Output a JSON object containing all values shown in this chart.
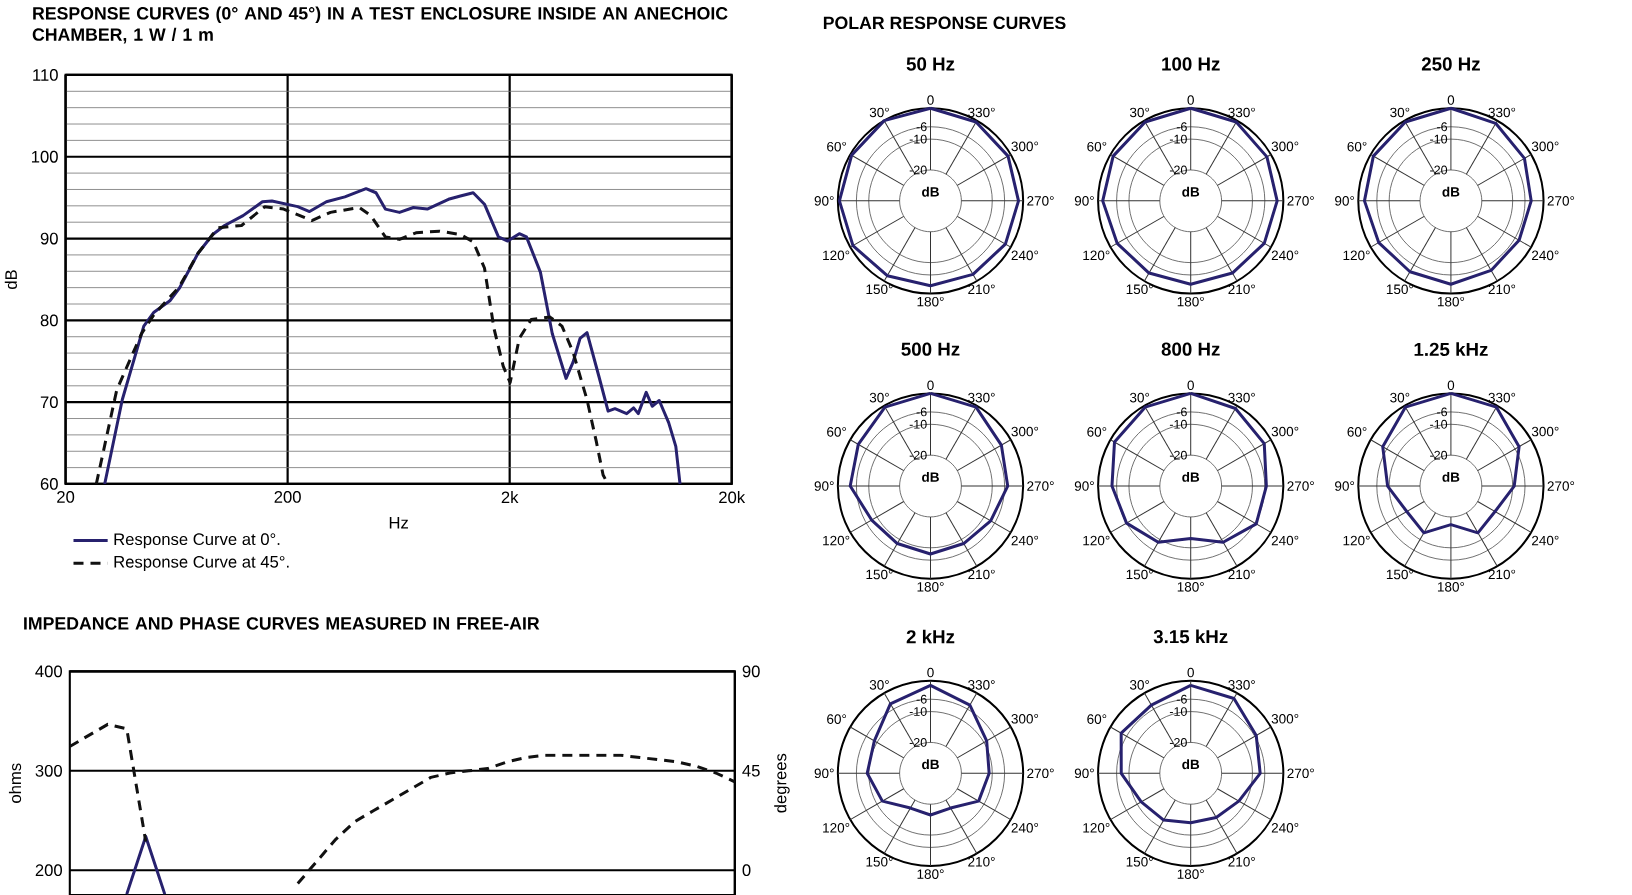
{
  "chart_data": [
    {
      "type": "line",
      "title": "RESPONSE CURVES (0° AND 45°) IN A TEST ENCLOSURE INSIDE AN ANECHOIC CHAMBER, 1 W / 1 m",
      "xlabel": "Hz",
      "ylabel": "dB",
      "log": "x",
      "xlim": [
        20,
        20000
      ],
      "xticks": [
        20,
        200,
        {
          "value": 2000,
          "label": "2k"
        },
        {
          "value": 20000,
          "label": "20k"
        }
      ],
      "ylim": [
        60,
        110
      ],
      "yticks": [
        60,
        70,
        80,
        90,
        100,
        110
      ],
      "grid": true,
      "legend": "bottom",
      "series": [
        {
          "name": "Response Curve at 0°.",
          "color": "#27216e",
          "x": [
            30,
            36,
            45,
            50,
            59,
            65,
            79,
            92,
            104,
            126,
            154,
            170,
            222,
            251,
            299,
            362,
            451,
            500,
            551,
            638,
            737,
            851,
            1060,
            1200,
            1370,
            1540,
            1780,
            1960,
            2210,
            2380,
            2750,
            3110,
            3590,
            3860,
            4150,
            4460,
            5040,
            5550,
            5960,
            6730,
            7230,
            7590,
            8240,
            8770,
            9430,
            10400,
            11200,
            11700
          ],
          "values": [
            60,
            70.3,
            79.3,
            81,
            82.4,
            83.9,
            88.2,
            90.5,
            91.6,
            92.8,
            94.5,
            94.6,
            93.9,
            93.3,
            94.5,
            95.1,
            96.1,
            95.6,
            93.6,
            93.2,
            93.8,
            93.6,
            94.8,
            95.2,
            95.6,
            94.2,
            90.2,
            89.7,
            90.6,
            90.2,
            85.9,
            78.4,
            72.9,
            74.9,
            77.8,
            78.5,
            73.2,
            68.9,
            69.2,
            68.6,
            69.3,
            68.6,
            71.2,
            69.5,
            70.2,
            67.5,
            64.6,
            60
          ]
        },
        {
          "name": "Response Curve at 45°.",
          "color": "#111111",
          "line_style": "dashed",
          "x": [
            27.5,
            34,
            44,
            50,
            65,
            79,
            97,
            124,
            158,
            192,
            257,
            312,
            420,
            474,
            551,
            638,
            757,
            965,
            1200,
            1370,
            1540,
            1700,
            1870,
            2010,
            2210,
            2500,
            3040,
            3440,
            3860,
            4460,
            4910,
            5270,
            5540
          ],
          "values": [
            60,
            71.5,
            78.4,
            80.7,
            84.1,
            88.2,
            91.3,
            91.6,
            93.9,
            93.6,
            92.2,
            93.2,
            93.8,
            92.8,
            90.2,
            89.9,
            90.7,
            90.9,
            90.5,
            89.6,
            86.4,
            79,
            74.4,
            72.4,
            77.8,
            80.1,
            80.4,
            79.3,
            76.1,
            70.3,
            65.2,
            61.1,
            60
          ]
        }
      ]
    },
    {
      "type": "line",
      "title": "IMPEDANCE AND PHASE CURVES MEASURED IN FREE-AIR",
      "ylabel": "ohms",
      "y2label": "degrees",
      "categories": [
        null,
        null,
        null,
        null,
        null,
        null,
        null,
        null,
        null,
        null,
        null,
        null,
        null,
        null,
        null,
        null,
        null,
        null,
        null,
        null,
        null,
        null,
        null,
        null,
        null,
        null,
        null,
        null,
        null,
        null,
        null,
        null,
        null,
        null,
        null,
        null
      ],
      "ylim": [
        175,
        400
      ],
      "yticks": [
        200,
        300,
        400
      ],
      "y2lim": [
        -11.25,
        90
      ],
      "y2ticks": [
        0,
        45,
        90
      ],
      "grid": "y",
      "series": [
        {
          "color": "#27216e",
          "values": [
            null,
            null,
            null,
            176,
            234,
            176,
            null,
            null,
            null,
            null,
            null,
            null,
            null,
            null,
            null,
            null,
            null,
            null,
            null,
            null,
            null,
            null,
            null,
            null,
            null,
            null,
            null,
            null,
            null,
            null,
            null,
            null,
            null,
            null,
            null,
            null
          ]
        },
        {
          "color": "#111111",
          "axis": "y2",
          "line_style": "dashed",
          "values": [
            56,
            61,
            66,
            64,
            13,
            null,
            null,
            null,
            null,
            null,
            null,
            null,
            null,
            null,
            null,
            null,
            null,
            null,
            null,
            null,
            null,
            null,
            null,
            null,
            null,
            null,
            null,
            null,
            null,
            null,
            null,
            null,
            null,
            null,
            null,
            null
          ]
        },
        {
          "color": "#111111",
          "axis": "y2",
          "line_style": "dashed",
          "values": [
            null,
            null,
            null,
            null,
            null,
            null,
            null,
            null,
            null,
            null,
            null,
            null,
            -6,
            4,
            14,
            22,
            27,
            32,
            37,
            42,
            44,
            45,
            46,
            49,
            51,
            52,
            52,
            52,
            52,
            52,
            51,
            50,
            49,
            47,
            44,
            40
          ]
        }
      ]
    },
    {
      "type": "radar",
      "title": "50 Hz",
      "annotations": [
        "POLAR RESPONSE CURVES"
      ],
      "ylabel": "dB",
      "categories": [
        "0",
        "330°",
        "300°",
        "270°",
        "240°",
        "210°",
        "180°",
        "150°",
        "120°",
        "90°",
        "60°",
        "30°"
      ],
      "ylim": [
        -30,
        0
      ],
      "yticks": [
        {
          "value": -6,
          "label": "-6"
        },
        {
          "value": -10,
          "label": "-10"
        },
        {
          "value": -20,
          "label": "-20"
        }
      ],
      "series": [
        {
          "color": "#27216e",
          "values": [
            0,
            -0.5,
            -1,
            -1.5,
            -2,
            -2.5,
            -2.5,
            -2,
            -1,
            -0.5,
            -0.5,
            0
          ]
        }
      ]
    },
    {
      "type": "radar",
      "title": "100 Hz",
      "ylabel": "dB",
      "categories": [
        "0",
        "330°",
        "300°",
        "270°",
        "240°",
        "210°",
        "180°",
        "150°",
        "120°",
        "90°",
        "60°",
        "30°"
      ],
      "ylim": [
        -30,
        0
      ],
      "yticks": [
        {
          "value": -6,
          "label": "-6"
        },
        {
          "value": -10,
          "label": "-10"
        },
        {
          "value": -20,
          "label": "-20"
        }
      ],
      "series": [
        {
          "color": "#27216e",
          "values": [
            0,
            -0.5,
            -1.5,
            -2,
            -2.5,
            -3,
            -3,
            -3,
            -2.5,
            -1.5,
            -1,
            -0.5
          ]
        }
      ]
    },
    {
      "type": "radar",
      "title": "250 Hz",
      "ylabel": "dB",
      "categories": [
        "0",
        "330°",
        "300°",
        "270°",
        "240°",
        "210°",
        "180°",
        "150°",
        "120°",
        "90°",
        "60°",
        "30°"
      ],
      "ylim": [
        -30,
        0
      ],
      "yticks": [
        {
          "value": -6,
          "label": "-6"
        },
        {
          "value": -10,
          "label": "-10"
        },
        {
          "value": -20,
          "label": "-20"
        }
      ],
      "series": [
        {
          "color": "#27216e",
          "values": [
            0,
            -1,
            -2.5,
            -4,
            -4.5,
            -4,
            -3,
            -3.5,
            -3,
            -2,
            -1,
            -0.5
          ]
        }
      ]
    },
    {
      "type": "radar",
      "title": "500 Hz",
      "ylabel": "dB",
      "categories": [
        "0",
        "330°",
        "300°",
        "270°",
        "240°",
        "210°",
        "180°",
        "150°",
        "120°",
        "90°",
        "60°",
        "30°"
      ],
      "ylim": [
        -30,
        0
      ],
      "yticks": [
        {
          "value": -6,
          "label": "-6"
        },
        {
          "value": -10,
          "label": "-10"
        },
        {
          "value": -20,
          "label": "-20"
        }
      ],
      "series": [
        {
          "color": "#27216e",
          "values": [
            0,
            -0.5,
            -3.5,
            -5,
            -7.5,
            -8.5,
            -8,
            -8.5,
            -8,
            -4,
            -3,
            -0.5
          ]
        }
      ]
    },
    {
      "type": "radar",
      "title": "800 Hz",
      "ylabel": "dB",
      "categories": [
        "0",
        "330°",
        "300°",
        "270°",
        "240°",
        "210°",
        "180°",
        "150°",
        "120°",
        "90°",
        "60°",
        "30°"
      ],
      "ylim": [
        -30,
        0
      ],
      "yticks": [
        {
          "value": -6,
          "label": "-6"
        },
        {
          "value": -10,
          "label": "-10"
        },
        {
          "value": -20,
          "label": "-20"
        }
      ],
      "series": [
        {
          "color": "#27216e",
          "values": [
            0,
            -1,
            -2.5,
            -5.5,
            -5.5,
            -9,
            -13,
            -9,
            -6,
            -4.5,
            -1.5,
            -0.5
          ]
        }
      ]
    },
    {
      "type": "radar",
      "title": "1.25 kHz",
      "ylabel": "dB",
      "categories": [
        "0",
        "330°",
        "300°",
        "270°",
        "240°",
        "210°",
        "180°",
        "150°",
        "120°",
        "90°",
        "60°",
        "30°"
      ],
      "ylim": [
        -30,
        0
      ],
      "yticks": [
        {
          "value": -6,
          "label": "-6"
        },
        {
          "value": -10,
          "label": "-10"
        },
        {
          "value": -20,
          "label": "-20"
        }
      ],
      "series": [
        {
          "color": "#27216e",
          "values": [
            0,
            -0.5,
            -4.5,
            -9.5,
            -13.5,
            -12.5,
            -17.5,
            -12.5,
            -13.5,
            -9.5,
            -4.5,
            -0.5
          ]
        }
      ]
    },
    {
      "type": "radar",
      "title": "2 kHz",
      "ylabel": "dB",
      "categories": [
        "0",
        "330°",
        "300°",
        "270°",
        "240°",
        "210°",
        "180°",
        "150°",
        "120°",
        "90°",
        "60°",
        "30°"
      ],
      "ylim": [
        -30,
        0
      ],
      "yticks": [
        {
          "value": -6,
          "label": "-6"
        },
        {
          "value": -10,
          "label": "-10"
        },
        {
          "value": -20,
          "label": "-20"
        }
      ],
      "series": [
        {
          "color": "#27216e",
          "values": [
            -1.5,
            -4.5,
            -9,
            -11,
            -12,
            -17,
            -16.5,
            -17,
            -12,
            -9.5,
            -9,
            -4
          ]
        }
      ]
    },
    {
      "type": "radar",
      "title": "3.15 kHz",
      "ylabel": "dB",
      "categories": [
        "0",
        "330°",
        "300°",
        "270°",
        "240°",
        "210°",
        "180°",
        "150°",
        "120°",
        "90°",
        "60°",
        "30°"
      ],
      "ylim": [
        -30,
        0
      ],
      "yticks": [
        {
          "value": -6,
          "label": "-6"
        },
        {
          "value": -10,
          "label": "-10"
        },
        {
          "value": -20,
          "label": "-20"
        }
      ],
      "series": [
        {
          "color": "#27216e",
          "values": [
            -1.5,
            -2,
            -5.5,
            -7.5,
            -12,
            -13.5,
            -14,
            -12.5,
            -11.5,
            -7.5,
            -4,
            -4.5
          ]
        }
      ]
    }
  ]
}
